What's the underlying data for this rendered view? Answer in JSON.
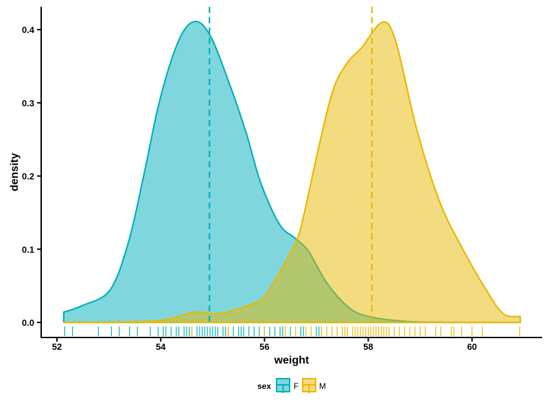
{
  "chart_data": {
    "type": "area",
    "title": "",
    "xlabel": "weight",
    "ylabel": "density",
    "xlim": [
      51.7,
      61.35
    ],
    "ylim": [
      -0.02,
      0.43
    ],
    "xticks": [
      52,
      54,
      56,
      58,
      60
    ],
    "xtick_labels": [
      "52",
      "54",
      "56",
      "58",
      "60"
    ],
    "yticks": [
      0.0,
      0.1,
      0.2,
      0.3,
      0.4
    ],
    "ytick_labels": [
      "0.0",
      "0.1",
      "0.2",
      "0.3",
      "0.4"
    ],
    "grid": false,
    "legend": {
      "title": "sex",
      "position": "bottom",
      "entries": [
        "F",
        "M"
      ]
    },
    "series": [
      {
        "name": "F",
        "color": "#00AFBB",
        "mean": 54.94,
        "x": [
          52.13,
          52.49,
          53.02,
          53.38,
          53.68,
          53.98,
          54.34,
          54.65,
          54.96,
          55.36,
          55.66,
          55.93,
          56.29,
          56.59,
          56.85,
          57.21,
          57.65,
          58.08,
          58.84,
          60.0,
          60.93
        ],
        "y": [
          0.014,
          0.023,
          0.044,
          0.11,
          0.203,
          0.303,
          0.384,
          0.411,
          0.391,
          0.319,
          0.256,
          0.19,
          0.134,
          0.115,
          0.097,
          0.053,
          0.019,
          0.007,
          0.001,
          0.0,
          0.0
        ],
        "rug": [
          52.15,
          52.3,
          52.8,
          53.05,
          53.2,
          53.4,
          53.55,
          53.8,
          53.95,
          54.05,
          54.1,
          54.2,
          54.3,
          54.35,
          54.45,
          54.5,
          54.55,
          54.6,
          54.7,
          54.75,
          54.8,
          54.85,
          54.9,
          54.95,
          55.0,
          55.05,
          55.1,
          55.2,
          55.25,
          55.3,
          55.4,
          55.5,
          55.55,
          55.6,
          55.7,
          55.8,
          55.9,
          56.0,
          56.1,
          56.2,
          56.3,
          56.35,
          56.5,
          56.7,
          56.75,
          57.0,
          57.05
        ]
      },
      {
        "name": "M",
        "color": "#E7B800",
        "mean": 58.07,
        "x": [
          52.13,
          53.9,
          54.65,
          55.13,
          55.76,
          56.02,
          56.37,
          56.63,
          56.76,
          57.08,
          57.34,
          57.61,
          57.87,
          58.27,
          58.53,
          58.93,
          59.37,
          59.8,
          60.25,
          60.6,
          60.93
        ],
        "y": [
          0.0,
          0.002,
          0.014,
          0.012,
          0.025,
          0.037,
          0.078,
          0.114,
          0.147,
          0.25,
          0.321,
          0.356,
          0.375,
          0.41,
          0.384,
          0.265,
          0.166,
          0.103,
          0.047,
          0.012,
          0.008
        ],
        "rug": [
          54.6,
          55.3,
          56.0,
          56.4,
          56.6,
          56.8,
          56.9,
          57.1,
          57.2,
          57.3,
          57.4,
          57.5,
          57.55,
          57.6,
          57.7,
          57.75,
          57.8,
          57.85,
          57.9,
          57.95,
          58.0,
          58.05,
          58.1,
          58.15,
          58.2,
          58.25,
          58.3,
          58.35,
          58.4,
          58.5,
          58.6,
          58.7,
          58.8,
          58.9,
          59.0,
          59.1,
          59.3,
          59.4,
          59.6,
          59.65,
          59.8,
          60.0,
          60.2,
          60.92
        ]
      }
    ]
  }
}
